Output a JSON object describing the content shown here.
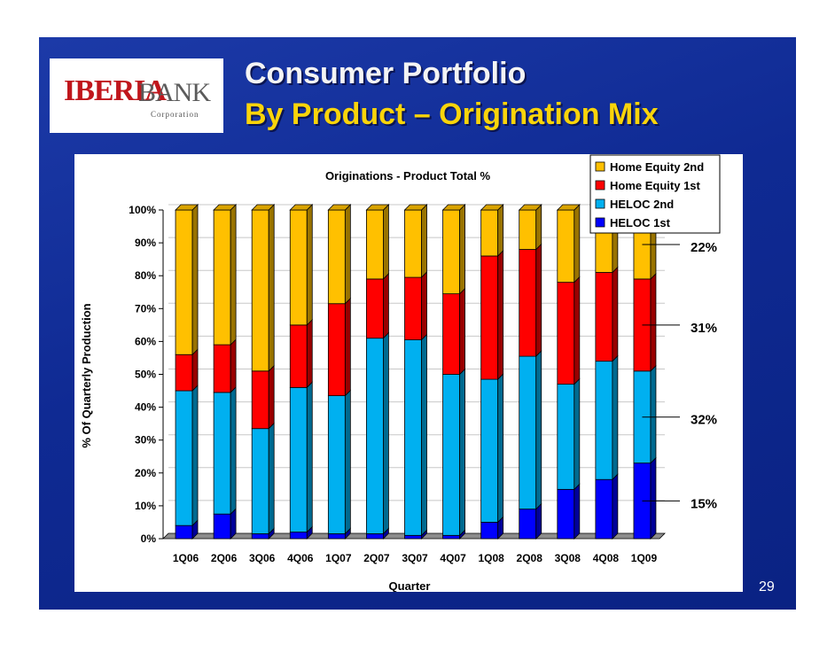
{
  "slide": {
    "title_line1": "Consumer Portfolio",
    "title_line2": "By Product – Origination Mix",
    "page_number": "29",
    "logo": {
      "brand": "IBERIABANK",
      "subtitle": "Corporation"
    }
  },
  "colors": {
    "home_equity_2nd": "#FFC000",
    "home_equity_1st": "#FF0000",
    "heloc_2nd": "#00B0F0",
    "heloc_1st": "#0000FF",
    "slide_bg": "#0F2A93",
    "title_yellow": "#FAD40A"
  },
  "chart_data": {
    "type": "bar",
    "stacked": true,
    "percent": true,
    "title": "Originations - Product Total %",
    "xlabel": "Quarter",
    "ylabel": "% Of Quarterly Production",
    "ylim": [
      0,
      100
    ],
    "yticks": [
      "0%",
      "10%",
      "20%",
      "30%",
      "40%",
      "50%",
      "60%",
      "70%",
      "80%",
      "90%",
      "100%"
    ],
    "categories": [
      "1Q06",
      "2Q06",
      "3Q06",
      "4Q06",
      "1Q07",
      "2Q07",
      "3Q07",
      "4Q07",
      "1Q08",
      "2Q08",
      "3Q08",
      "4Q08",
      "1Q09"
    ],
    "series": [
      {
        "name": "HELOC 1st",
        "color": "#0000FF",
        "values": [
          4,
          7.5,
          1.5,
          2,
          1.5,
          1.5,
          1,
          1,
          5,
          9,
          15,
          18,
          23
        ]
      },
      {
        "name": "HELOC 2nd",
        "color": "#00B0F0",
        "values": [
          41,
          37,
          32,
          44,
          42,
          59.5,
          59.5,
          49,
          43.5,
          46.5,
          32,
          36,
          28
        ]
      },
      {
        "name": "Home Equity 1st",
        "color": "#FF0000",
        "values": [
          11,
          14.5,
          17.5,
          19,
          28,
          18,
          19,
          24.5,
          37.5,
          32.5,
          31,
          27,
          28
        ]
      },
      {
        "name": "Home Equity 2nd",
        "color": "#FFC000",
        "values": [
          44,
          41,
          49,
          35,
          28.5,
          21,
          20.5,
          25.5,
          14,
          12,
          22,
          19,
          21
        ]
      }
    ],
    "legend": [
      "Home Equity 2nd",
      "Home Equity 1st",
      "HELOC 2nd",
      "HELOC 1st"
    ],
    "legend_position": "top-right",
    "annotations": [
      "22%",
      "31%",
      "32%",
      "15%"
    ]
  }
}
